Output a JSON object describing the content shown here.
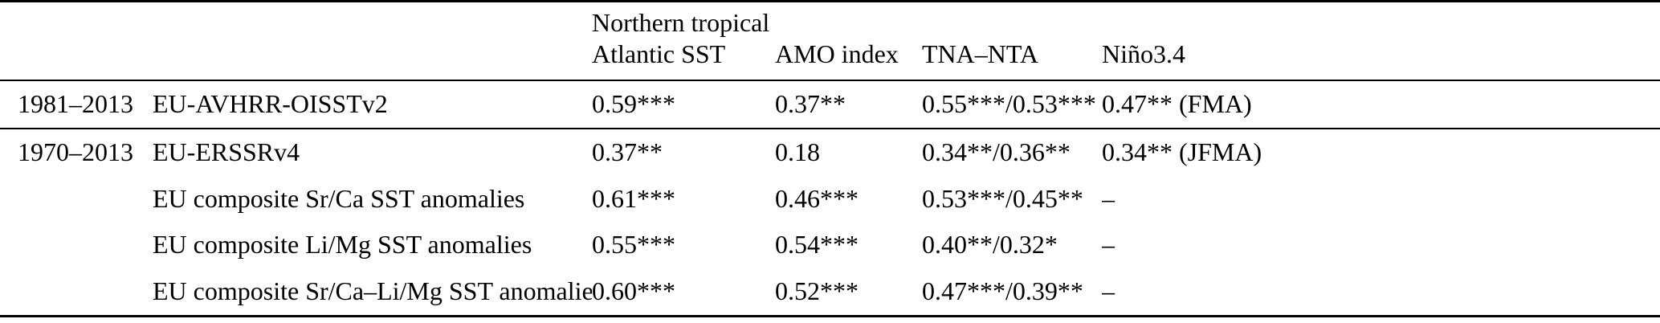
{
  "table": {
    "columns": [
      {
        "id": "period",
        "lines": [
          ""
        ]
      },
      {
        "id": "dataset",
        "lines": [
          ""
        ]
      },
      {
        "id": "nta-sst",
        "lines": [
          "Northern tropical",
          "Atlantic SST"
        ]
      },
      {
        "id": "amo",
        "lines": [
          "AMO index"
        ]
      },
      {
        "id": "tna-nta",
        "lines": [
          "TNA–NTA"
        ]
      },
      {
        "id": "nino34",
        "lines": [
          "Niño3.4"
        ]
      }
    ],
    "groups": [
      {
        "rows": [
          [
            "1981–2013",
            "EU-AVHRR-OISSTv2",
            "0.59***",
            "0.37**",
            "0.55***/0.53***",
            "0.47** (FMA)"
          ]
        ]
      },
      {
        "rows": [
          [
            "1970–2013",
            "EU-ERSSRv4",
            "0.37**",
            "0.18",
            "0.34**/0.36**",
            "0.34** (JFMA)"
          ],
          [
            "",
            "EU composite Sr/Ca SST anomalies",
            "0.61***",
            "0.46***",
            "0.53***/0.45**",
            "–"
          ],
          [
            "",
            "EU composite Li/Mg SST anomalies",
            "0.55***",
            "0.54***",
            "0.40**/0.32*",
            "–"
          ],
          [
            "",
            "EU composite Sr/Ca–Li/Mg SST anomalies",
            "0.60***",
            "0.52***",
            "0.47***/0.39**",
            "–"
          ]
        ]
      }
    ]
  }
}
